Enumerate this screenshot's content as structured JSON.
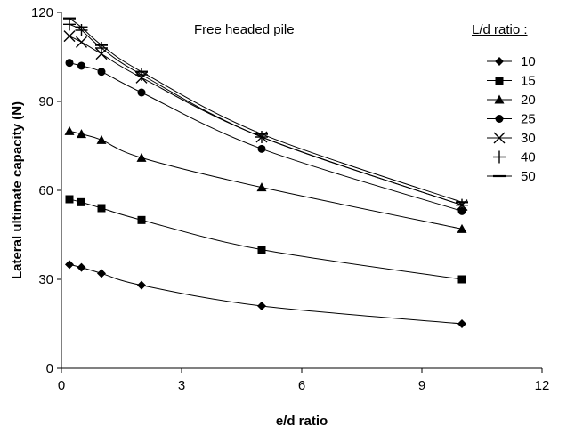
{
  "chart_data": {
    "type": "line",
    "annotation": "Free headed pile",
    "xlabel": "e/d ratio",
    "ylabel": "Lateral ultimate capacity (N)",
    "xlim": [
      0,
      12
    ],
    "ylim": [
      0,
      120
    ],
    "xticks": [
      0,
      3,
      6,
      9,
      12
    ],
    "yticks": [
      0,
      30,
      60,
      90,
      120
    ],
    "grid": false,
    "legend": {
      "title": "L/d ratio :",
      "placement": "right"
    },
    "series": [
      {
        "name": "10",
        "marker": "diamond",
        "x": [
          0.2,
          0.5,
          1,
          2,
          5,
          10
        ],
        "y": [
          35,
          34,
          32,
          28,
          21,
          15
        ]
      },
      {
        "name": "15",
        "marker": "square",
        "x": [
          0.2,
          0.5,
          1,
          2,
          5,
          10
        ],
        "y": [
          57,
          56,
          54,
          50,
          40,
          30
        ]
      },
      {
        "name": "20",
        "marker": "triangle",
        "x": [
          0.2,
          0.5,
          1,
          2,
          5,
          10
        ],
        "y": [
          80,
          79,
          77,
          71,
          61,
          47
        ]
      },
      {
        "name": "25",
        "marker": "circle",
        "x": [
          0.2,
          0.5,
          1,
          2,
          5,
          10
        ],
        "y": [
          103,
          102,
          100,
          93,
          74,
          53
        ]
      },
      {
        "name": "30",
        "marker": "x",
        "x": [
          0.2,
          0.5,
          1,
          2,
          5,
          10
        ],
        "y": [
          112,
          110,
          106,
          98,
          78,
          55
        ]
      },
      {
        "name": "40",
        "marker": "plus",
        "x": [
          0.2,
          0.5,
          1,
          2,
          5,
          10
        ],
        "y": [
          116,
          114,
          108,
          99,
          78,
          55
        ]
      },
      {
        "name": "50",
        "marker": "dash",
        "x": [
          0.2,
          0.5,
          1,
          2,
          5,
          10
        ],
        "y": [
          118,
          115,
          109,
          100,
          79,
          56
        ]
      }
    ]
  }
}
